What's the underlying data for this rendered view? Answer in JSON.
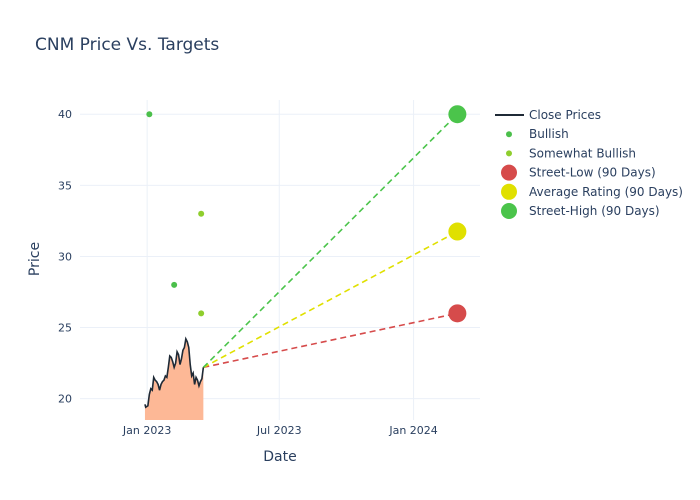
{
  "chart_data": {
    "type": "line",
    "title": "CNM Price Vs. Targets",
    "xlabel": "Date",
    "ylabel": "Price",
    "xlim": [
      "2022-10-01",
      "2024-04-01"
    ],
    "ylim": [
      18.5,
      41
    ],
    "x_ticks": [
      {
        "date": "2023-01-01",
        "label": "Jan 2023"
      },
      {
        "date": "2023-07-01",
        "label": "Jul 2023"
      },
      {
        "date": "2024-01-01",
        "label": "Jan 2024"
      }
    ],
    "y_ticks": [
      20,
      25,
      30,
      35,
      40
    ],
    "grid": true,
    "legend_position": "right",
    "colors": {
      "close": "#1f2a36",
      "close_fill": "#fdb896",
      "bullish": "#4bbf4b",
      "somewhat_bullish": "#8fce2d",
      "street_low": "#d64b4b",
      "average": "#e0e000",
      "street_high": "#4bc44b"
    },
    "series": [
      {
        "name": "Close Prices",
        "kind": "line",
        "points": [
          [
            "2022-12-29",
            19.6
          ],
          [
            "2022-12-30",
            19.4
          ],
          [
            "2023-01-02",
            19.5
          ],
          [
            "2023-01-04",
            20.3
          ],
          [
            "2023-01-06",
            20.7
          ],
          [
            "2023-01-08",
            20.6
          ],
          [
            "2023-01-10",
            21.5
          ],
          [
            "2023-01-12",
            21.3
          ],
          [
            "2023-01-14",
            21.2
          ],
          [
            "2023-01-16",
            21.0
          ],
          [
            "2023-01-18",
            20.6
          ],
          [
            "2023-01-20",
            21.0
          ],
          [
            "2023-01-22",
            21.2
          ],
          [
            "2023-01-24",
            21.3
          ],
          [
            "2023-01-26",
            21.6
          ],
          [
            "2023-01-28",
            21.5
          ],
          [
            "2023-01-30",
            22.2
          ],
          [
            "2023-02-01",
            23.0
          ],
          [
            "2023-02-03",
            22.9
          ],
          [
            "2023-02-05",
            22.6
          ],
          [
            "2023-02-07",
            22.2
          ],
          [
            "2023-02-09",
            22.5
          ],
          [
            "2023-02-11",
            23.3
          ],
          [
            "2023-02-13",
            23.1
          ],
          [
            "2023-02-15",
            22.4
          ],
          [
            "2023-02-17",
            22.8
          ],
          [
            "2023-02-19",
            23.4
          ],
          [
            "2023-02-21",
            23.6
          ],
          [
            "2023-02-23",
            24.2
          ],
          [
            "2023-02-25",
            24.0
          ],
          [
            "2023-02-27",
            23.6
          ],
          [
            "2023-03-01",
            22.4
          ],
          [
            "2023-03-03",
            21.6
          ],
          [
            "2023-03-05",
            21.8
          ],
          [
            "2023-03-07",
            21.0
          ],
          [
            "2023-03-09",
            21.5
          ],
          [
            "2023-03-11",
            21.3
          ],
          [
            "2023-03-13",
            20.9
          ],
          [
            "2023-03-15",
            21.2
          ],
          [
            "2023-03-17",
            21.4
          ],
          [
            "2023-03-19",
            22.2
          ]
        ]
      },
      {
        "name": "Bullish",
        "kind": "scatter",
        "points": [
          [
            "2023-01-04",
            40
          ],
          [
            "2023-02-07",
            28
          ]
        ]
      },
      {
        "name": "Somewhat Bullish",
        "kind": "scatter",
        "points": [
          [
            "2023-03-16",
            33
          ],
          [
            "2023-03-16",
            26
          ]
        ]
      },
      {
        "name": "Street-Low (90 Days)",
        "kind": "target",
        "start": [
          "2023-03-19",
          22.2
        ],
        "end": [
          "2024-03-01",
          26
        ]
      },
      {
        "name": "Average Rating (90 Days)",
        "kind": "target",
        "start": [
          "2023-03-19",
          22.2
        ],
        "end": [
          "2024-03-01",
          31.75
        ]
      },
      {
        "name": "Street-High (90 Days)",
        "kind": "target",
        "start": [
          "2023-03-19",
          22.2
        ],
        "end": [
          "2024-03-01",
          40
        ]
      }
    ]
  }
}
